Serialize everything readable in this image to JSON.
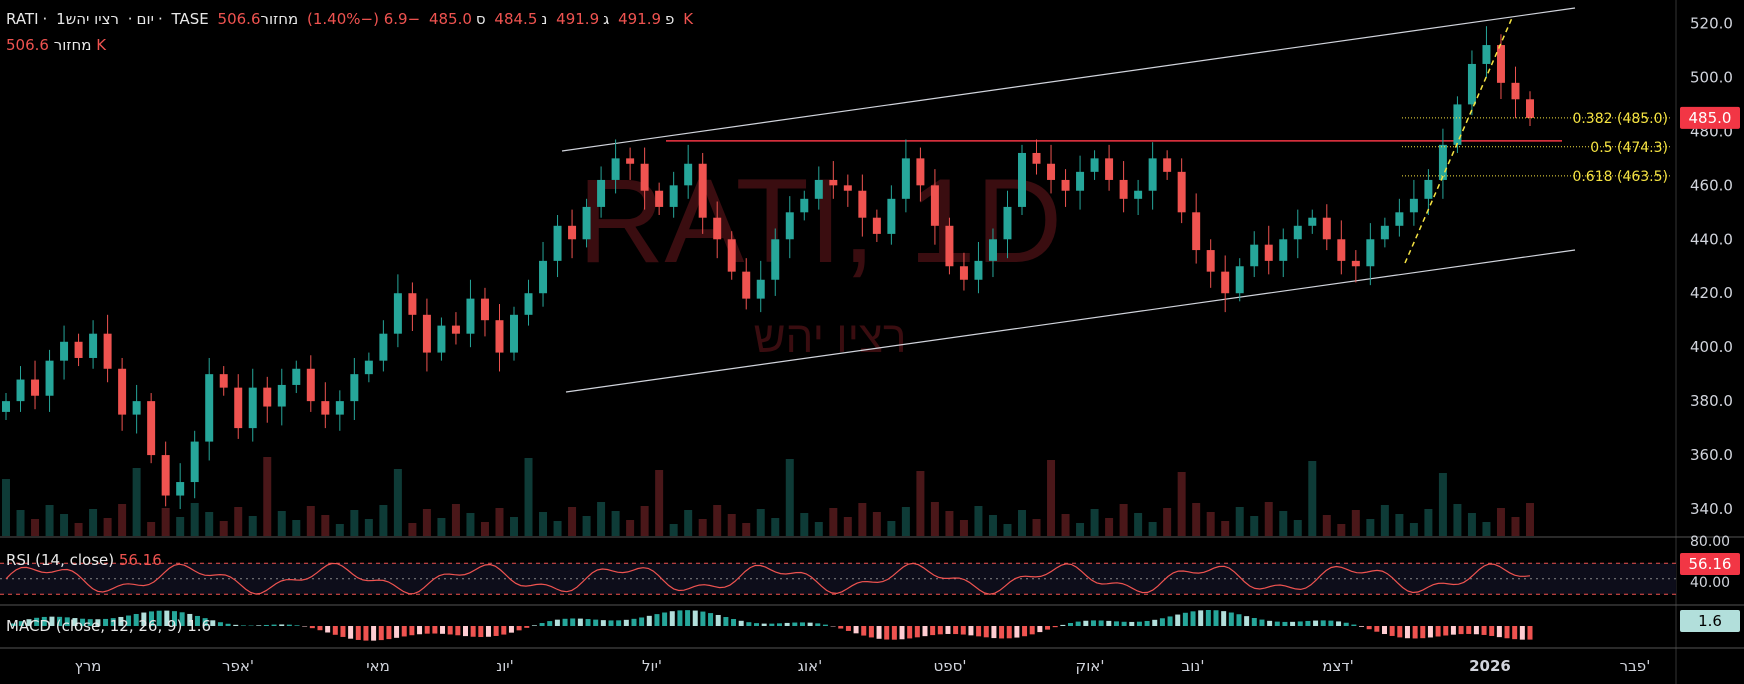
{
  "header": {
    "symbol": "RATI",
    "interval": "1יום",
    "name": "רציו יהש",
    "exchange": "TASE",
    "open_prefix": "פ",
    "open": "491.9",
    "high_prefix": "ג",
    "high": "491.9",
    "low_prefix": "נ",
    "low": "484.5",
    "close_prefix": "ס",
    "close": "485.0",
    "change": "−6.9 (−1.40%)",
    "volume_label": "מחזור",
    "volume": "506.6 K",
    "sep": "·"
  },
  "volume_legend": {
    "label": "מחזור",
    "value": "506.6 K"
  },
  "watermark": {
    "title": "RATI, 1D",
    "subtitle": "רציו יהש"
  },
  "rsi": {
    "label": "RSI (14, close)",
    "value": "56.16",
    "axis": [
      "80.00",
      "40.00"
    ]
  },
  "macd": {
    "label": "MACD (close, 12, 26, 9)",
    "value": "1.6",
    "axis_value": "1.6"
  },
  "price_axis": {
    "ticks": [
      520,
      500,
      480,
      460,
      440,
      420,
      400,
      380,
      360,
      340
    ],
    "current": "485.0"
  },
  "fib_labels": [
    "0.382 (485.0)",
    "0.5 (474.3)",
    "0.618 (463.5)"
  ],
  "time_axis": [
    "מרץ",
    "אפר'",
    "מאי",
    "יונ'",
    "יול'",
    "אוג'",
    "ספט'",
    "אוק'",
    "נוב'",
    "דצמ'",
    "2026",
    "פבר'"
  ],
  "colors": {
    "up": "#26a69a",
    "down": "#ef5350",
    "fib": "#f5e342",
    "resistance": "#f23645",
    "channel": "#d1d4dc"
  },
  "chart_data": {
    "type": "candlestick",
    "ylim": [
      330,
      525
    ],
    "series": [
      {
        "name": "price",
        "values": [
          380,
          388,
          382,
          395,
          402,
          396,
          405,
          392,
          375,
          380,
          360,
          345,
          350,
          365,
          390,
          385,
          370,
          385,
          378,
          386,
          392,
          380,
          375,
          380,
          390,
          395,
          405,
          420,
          412,
          398,
          408,
          405,
          418,
          410,
          398,
          412,
          420,
          432,
          445,
          440,
          452,
          462,
          470,
          468,
          458,
          452,
          460,
          468,
          448,
          440,
          428,
          418,
          425,
          440,
          450,
          455,
          462,
          460,
          458,
          448,
          442,
          455,
          470,
          460,
          445,
          430,
          425,
          432,
          440,
          452,
          472,
          468,
          462,
          458,
          465,
          470,
          462,
          455,
          458,
          470,
          465,
          450,
          436,
          428,
          420,
          430,
          438,
          432,
          440,
          445,
          448,
          440,
          432,
          430,
          440,
          445,
          450,
          455,
          462,
          475,
          490,
          505,
          512,
          498,
          491.9,
          485
        ]
      }
    ]
  }
}
